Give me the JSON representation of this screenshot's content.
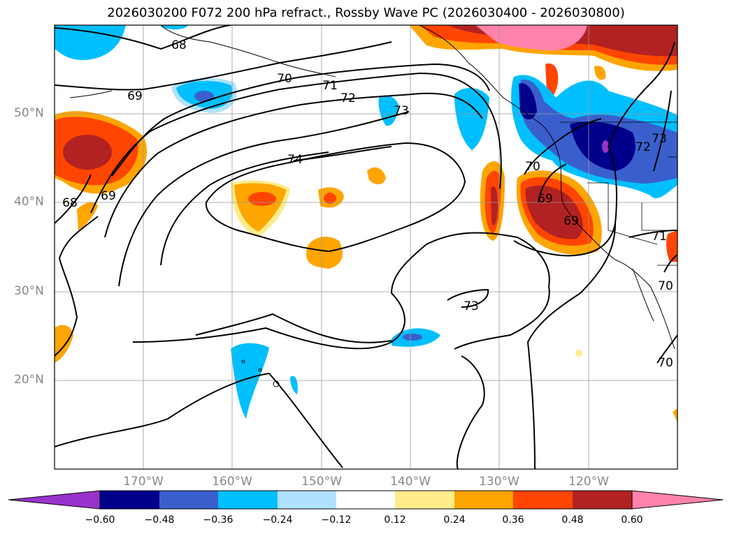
{
  "title": "2026030200 F072 200 hPa refract., Rossby Wave PC (2026030400 - 2026030800)",
  "lat_labels": [
    "50°N",
    "40°N",
    "30°N",
    "20°N"
  ],
  "lon_labels": [
    "170°W",
    "160°W",
    "150°W",
    "140°W",
    "130°W",
    "120°W"
  ],
  "contour_labels": [
    "68",
    "69",
    "70",
    "71",
    "72",
    "73",
    "74",
    "73",
    "69",
    "68",
    "69",
    "70",
    "69",
    "72",
    "73",
    "71",
    "70",
    "70"
  ],
  "colorbar": {
    "ticks": [
      "−0.60",
      "−0.48",
      "−0.36",
      "−0.24",
      "−0.12",
      "0.12",
      "0.24",
      "0.36",
      "0.48",
      "0.60"
    ],
    "colors": [
      "#9932cc",
      "#00008b",
      "#3a5fcd",
      "#00bfff",
      "#b0e2ff",
      "#ffffff",
      "#ffec8b",
      "#ffa500",
      "#ff4500",
      "#b22222",
      "#ff82ab"
    ]
  }
}
